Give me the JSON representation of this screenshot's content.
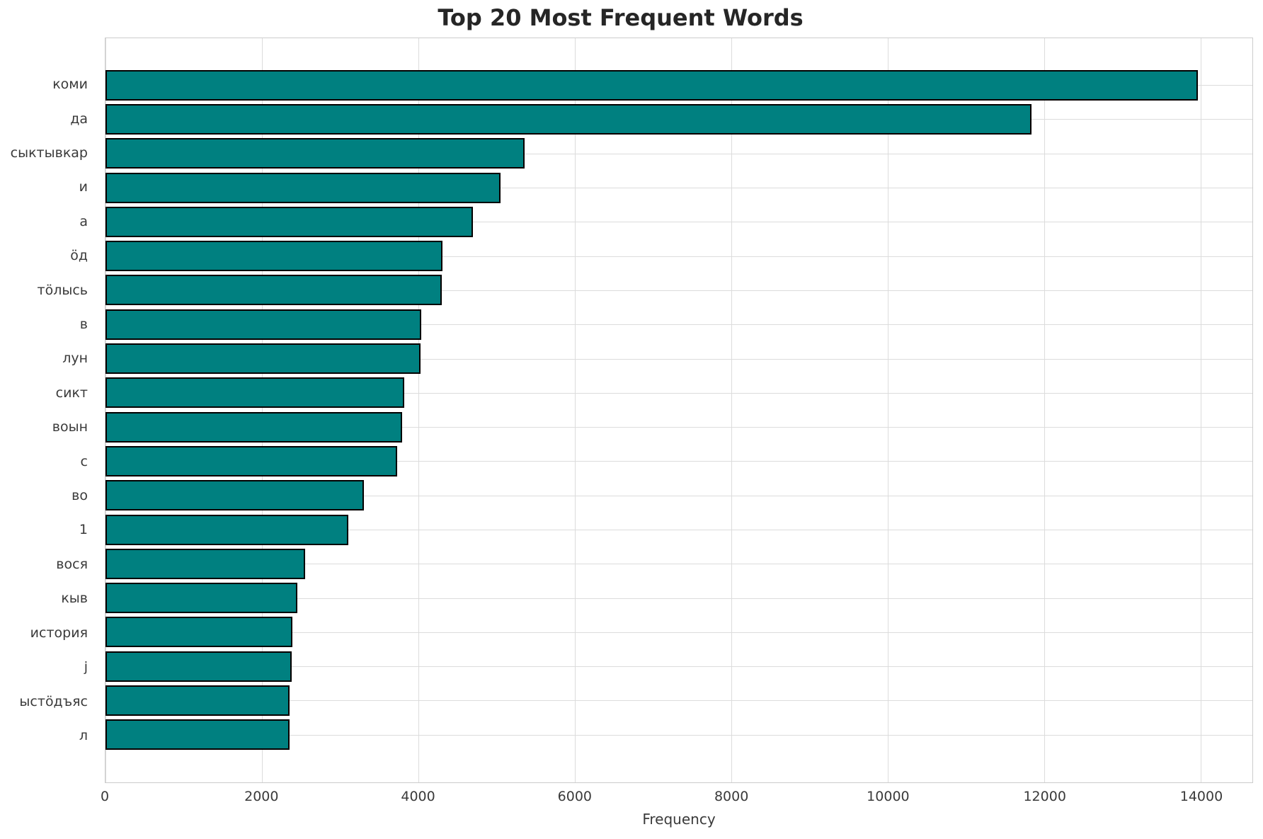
{
  "title": "Top 20 Most Frequent Words",
  "colors": {
    "bar_fill": "#008080",
    "bar_edge": "#000000",
    "grid": "#dcdcdc",
    "spine": "#cccccc",
    "title_text": "#262626",
    "tick_text": "#3a3a3a"
  },
  "chart_data": {
    "type": "bar",
    "orientation": "horizontal",
    "title": "Top 20 Most Frequent Words",
    "xlabel": "Frequency",
    "ylabel": "",
    "categories": [
      "коми",
      "да",
      "сыктывкар",
      "и",
      "а",
      "ӧд",
      "тӧлысь",
      "в",
      "лун",
      "сикт",
      "воын",
      "с",
      "во",
      "1",
      "вося",
      "кыв",
      "история",
      "j",
      "ыстӧдъяс",
      "л"
    ],
    "values": [
      13960,
      11840,
      5360,
      5050,
      4700,
      4310,
      4300,
      4040,
      4030,
      3820,
      3790,
      3730,
      3300,
      3100,
      2550,
      2450,
      2390,
      2380,
      2355,
      2350
    ],
    "xlim": [
      0,
      14660
    ],
    "xticks": [
      0,
      2000,
      4000,
      6000,
      8000,
      10000,
      12000,
      14000
    ],
    "xtick_labels": [
      "0",
      "2000",
      "4000",
      "6000",
      "8000",
      "10000",
      "12000",
      "14000"
    ],
    "grid": true,
    "legend": false
  }
}
